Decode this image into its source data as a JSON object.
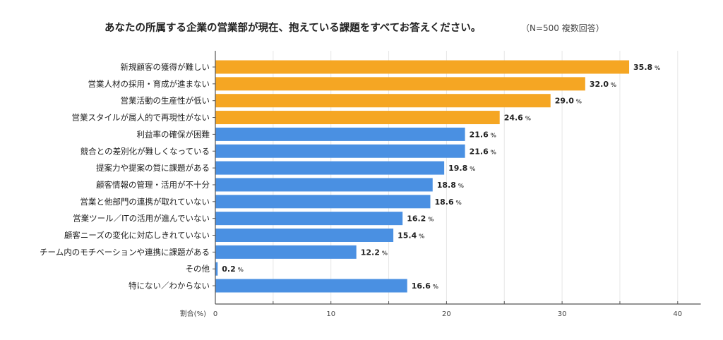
{
  "chart_data": {
    "type": "bar",
    "orientation": "horizontal",
    "title": "あなたの所属する企業の営業部が現在、抱えている課題をすべてお答えください。",
    "subtitle": "（N=500 複数回答）",
    "xlabel": "割合(%)",
    "xlim": [
      0,
      42
    ],
    "xticks": [
      0,
      10,
      20,
      30,
      40
    ],
    "grid": true,
    "value_unit": "%",
    "categories": [
      "新規顧客の獲得が難しい",
      "営業人材の採用・育成が進まない",
      "営業活動の生産性が低い",
      "営業スタイルが属人的で再現性がない",
      "利益率の確保が困難",
      "競合との差別化が難しくなっている",
      "提案力や提案の質に課題がある",
      "顧客情報の管理・活用が不十分",
      "営業と他部門の連携が取れていない",
      "営業ツール／ITの活用が進んでいない",
      "顧客ニーズの変化に対応しきれていない",
      "チーム内のモチベーションや連携に課題がある",
      "その他",
      "特にない／わからない"
    ],
    "values": [
      35.8,
      32.0,
      29.0,
      24.6,
      21.6,
      21.6,
      19.8,
      18.8,
      18.6,
      16.2,
      15.4,
      12.2,
      0.2,
      16.6
    ],
    "value_labels": [
      "35.8",
      "32.0",
      "29.0",
      "24.6",
      "21.6",
      "21.6",
      "19.8",
      "18.8",
      "18.6",
      "16.2",
      "15.4",
      "12.2",
      "0.2",
      "16.6"
    ],
    "highlight_count": 4,
    "colors": {
      "highlight": "#F5A623",
      "default": "#4A90E2",
      "grid": "#e6e6e6",
      "axis": "#555555"
    }
  }
}
